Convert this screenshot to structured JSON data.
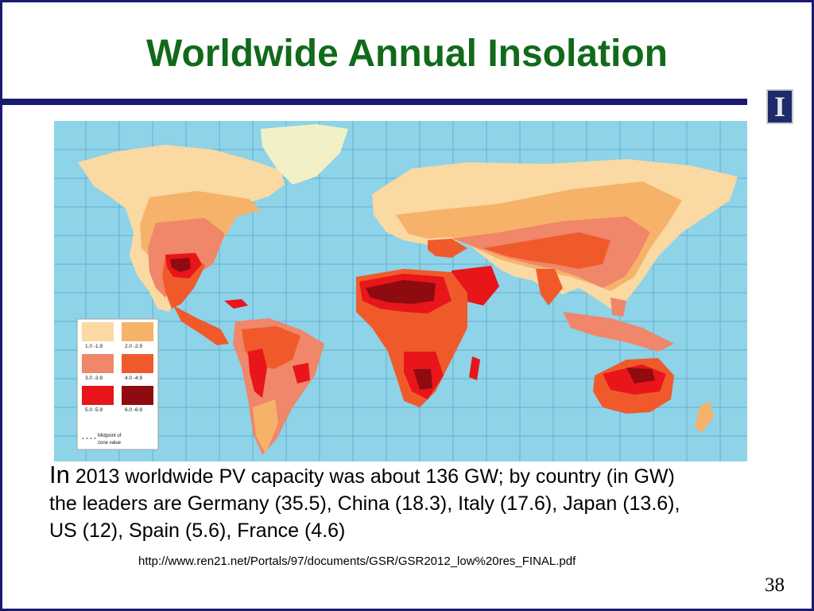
{
  "slide": {
    "title": "Worldwide Annual Insolation",
    "caption_first_word": "In",
    "caption_rest": "2013 worldwide PV capacity was about 136 GW; by country (in GW) the leaders are Germany (35.5), China (18.3), Italy (17.6), Japan (13.6), US (12), Spain (5.6), France (4.6)",
    "source_url": "http://www.ren21.net/Portals/97/documents/GSR/GSR2012_low%20res_FINAL.pdf",
    "page_number": "38",
    "logo_icon": "university-block-i-icon"
  },
  "legend": {
    "zones": [
      {
        "label": "1.0 -1.9",
        "color": "#fad9a3"
      },
      {
        "label": "2.0 -2.9",
        "color": "#f7b26a"
      },
      {
        "label": "3.0 -3.9",
        "color": "#f0866a"
      },
      {
        "label": "4.0 -4.9",
        "color": "#f05a2b"
      },
      {
        "label": "5.0 -5.9",
        "color": "#e8151b"
      },
      {
        "label": "6.0 -6.9",
        "color": "#8e0c10"
      }
    ],
    "midpoint_label_line1": "Midpoint of",
    "midpoint_label_line2": "zone value"
  },
  "map_colors": {
    "ocean": "#8ed3e8",
    "grid": "#5aa7c8",
    "greenland_pale": "#f1f0c6"
  },
  "bullets": {
    "caption_lines": [
      "In 2013 worldwide PV capacity was about 136 GW; by country (in GW)",
      "the leaders are Germany (35.5), China (18.3), Italy (17.6), Japan (13.6),",
      "US (12), Spain (5.6), France (4.6)"
    ]
  }
}
